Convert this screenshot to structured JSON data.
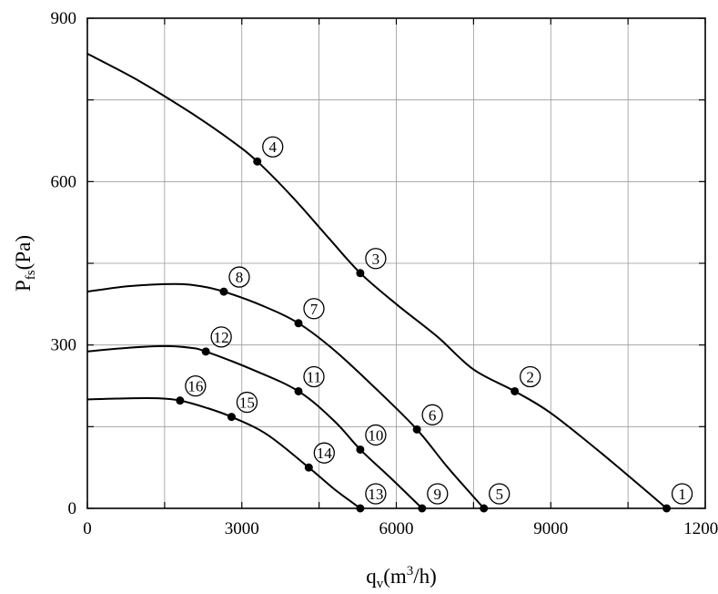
{
  "chart_data": {
    "type": "line",
    "xlabel": {
      "main": "q",
      "sub": "v",
      "rest": "(m",
      "sup": "3",
      "end": "/h)"
    },
    "ylabel": {
      "main": "P",
      "sub": "fs",
      "rest": "(Pa)"
    },
    "xlim": [
      0,
      12000
    ],
    "ylim": [
      0,
      900
    ],
    "x_ticks": [
      0,
      3000,
      6000,
      9000,
      12000
    ],
    "y_ticks": [
      0,
      300,
      600,
      900
    ],
    "x_tick_labels": [
      "0",
      "3000",
      "6000",
      "9000",
      "12000"
    ],
    "y_tick_labels": [
      "0",
      "300",
      "600",
      "900"
    ],
    "x_grid_step": 1500,
    "y_grid_step": 150,
    "grid": true,
    "series": [
      {
        "curve": [
          [
            0,
            835
          ],
          [
            1000,
            785
          ],
          [
            2000,
            727
          ],
          [
            2800,
            675
          ],
          [
            3300,
            637
          ],
          [
            4000,
            570
          ],
          [
            4700,
            495
          ],
          [
            5300,
            432
          ],
          [
            6000,
            375
          ],
          [
            6800,
            315
          ],
          [
            7500,
            255
          ],
          [
            8300,
            215
          ],
          [
            9000,
            175
          ],
          [
            10000,
            100
          ],
          [
            11250,
            0
          ]
        ],
        "points": [
          {
            "label": "1",
            "x": 11250,
            "y": 0
          },
          {
            "label": "2",
            "x": 8300,
            "y": 215
          },
          {
            "label": "3",
            "x": 5300,
            "y": 432
          },
          {
            "label": "4",
            "x": 3300,
            "y": 637
          }
        ]
      },
      {
        "curve": [
          [
            0,
            398
          ],
          [
            800,
            408
          ],
          [
            1700,
            412
          ],
          [
            2200,
            408
          ],
          [
            2650,
            398
          ],
          [
            3400,
            372
          ],
          [
            4100,
            340
          ],
          [
            4800,
            290
          ],
          [
            5600,
            220
          ],
          [
            6400,
            145
          ],
          [
            7000,
            75
          ],
          [
            7700,
            0
          ]
        ],
        "points": [
          {
            "label": "5",
            "x": 7700,
            "y": 0
          },
          {
            "label": "6",
            "x": 6400,
            "y": 145
          },
          {
            "label": "7",
            "x": 4100,
            "y": 340
          },
          {
            "label": "8",
            "x": 2650,
            "y": 398
          }
        ]
      },
      {
        "curve": [
          [
            0,
            288
          ],
          [
            800,
            295
          ],
          [
            1500,
            298
          ],
          [
            2000,
            295
          ],
          [
            2300,
            288
          ],
          [
            3200,
            255
          ],
          [
            4100,
            215
          ],
          [
            4800,
            160
          ],
          [
            5300,
            108
          ],
          [
            5900,
            55
          ],
          [
            6500,
            0
          ]
        ],
        "points": [
          {
            "label": "9",
            "x": 6500,
            "y": 0
          },
          {
            "label": "10",
            "x": 5300,
            "y": 108
          },
          {
            "label": "11",
            "x": 4100,
            "y": 215
          },
          {
            "label": "12",
            "x": 2300,
            "y": 288
          }
        ]
      },
      {
        "curve": [
          [
            0,
            200
          ],
          [
            800,
            202
          ],
          [
            1400,
            202
          ],
          [
            1800,
            198
          ],
          [
            2300,
            185
          ],
          [
            2800,
            168
          ],
          [
            3500,
            135
          ],
          [
            4300,
            75
          ],
          [
            4800,
            35
          ],
          [
            5300,
            0
          ]
        ],
        "points": [
          {
            "label": "13",
            "x": 5300,
            "y": 0
          },
          {
            "label": "14",
            "x": 4300,
            "y": 75
          },
          {
            "label": "15",
            "x": 2800,
            "y": 168
          },
          {
            "label": "16",
            "x": 1800,
            "y": 198
          }
        ]
      }
    ]
  }
}
